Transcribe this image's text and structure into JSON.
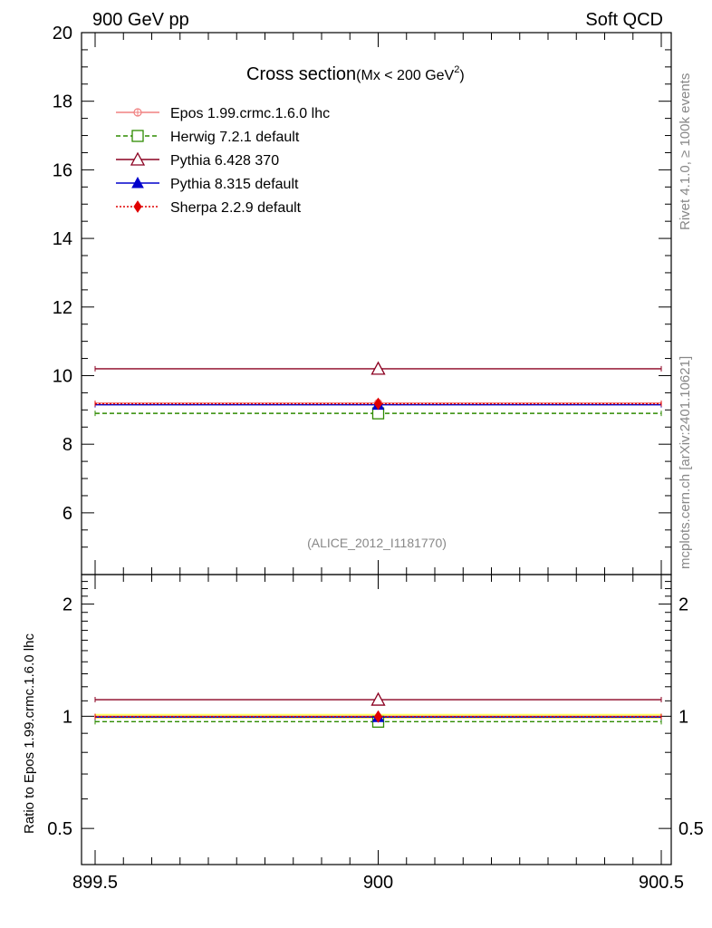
{
  "header": {
    "left": "900 GeV pp",
    "right": "Soft QCD"
  },
  "side": {
    "rivet": "Rivet 4.1.0, ≥ 100k events",
    "mcplots": "mcplots.cern.ch [arXiv:2401.10621]"
  },
  "colors": {
    "epos": "#f08080",
    "herwig": "#2e8b00",
    "pythia6": "#8b0020",
    "pythia8": "#0000cc",
    "sherpa": "#e00000",
    "band": "#ffff66"
  },
  "chart_data": [
    {
      "type": "line",
      "title": "Cross section",
      "title_suffix": "(Mx < 200 GeV",
      "title_suffix_sup": "2",
      "title_suffix_close": ")",
      "watermark": "(ALICE_2012_I1181770)",
      "xlim": [
        899.5,
        900.5
      ],
      "ylim": [
        4.2,
        20
      ],
      "xticks": [
        899.5,
        900,
        900.5
      ],
      "xtick_labels": [
        "899.5",
        "900",
        "900.5"
      ],
      "yticks": [
        6,
        8,
        10,
        12,
        14,
        16,
        18,
        20
      ],
      "ytick_labels": [
        "6",
        "8",
        "10",
        "12",
        "14",
        "16",
        "18",
        "20"
      ],
      "legend_position": "top-left",
      "series": [
        {
          "name": "Epos 1.99.crmc.1.6.0 lhc",
          "key": "epos",
          "marker": "open-cross",
          "dash": "solid",
          "x": 900,
          "xerr": [
            899.5,
            900.5
          ],
          "y": 9.2
        },
        {
          "name": "Herwig 7.2.1 default",
          "key": "herwig",
          "marker": "open-square",
          "dash": "dashed",
          "x": 900,
          "xerr": [
            899.5,
            900.5
          ],
          "y": 8.9
        },
        {
          "name": "Pythia 6.428 370",
          "key": "pythia6",
          "marker": "open-triangle",
          "dash": "solid",
          "x": 900,
          "xerr": [
            899.5,
            900.5
          ],
          "y": 10.2
        },
        {
          "name": "Pythia 8.315 default",
          "key": "pythia8",
          "marker": "filled-triangle",
          "dash": "solid",
          "x": 900,
          "xerr": [
            899.5,
            900.5
          ],
          "y": 9.15
        },
        {
          "name": "Sherpa 2.2.9 default",
          "key": "sherpa",
          "marker": "filled-diamond",
          "dash": "dotted",
          "x": 900,
          "xerr": [
            899.5,
            900.5
          ],
          "y": 9.18
        }
      ]
    },
    {
      "type": "line",
      "ylabel": "Ratio to Epos 1.99.crmc.1.6.0 lhc",
      "yscale": "log",
      "xlim": [
        899.5,
        900.5
      ],
      "ylim": [
        0.4,
        2.4
      ],
      "yticks": [
        0.5,
        1,
        2
      ],
      "ytick_labels": [
        "0.5",
        "1",
        "2"
      ],
      "series": [
        {
          "name": "Epos 1.99.crmc.1.6.0 lhc",
          "key": "epos",
          "marker": "none",
          "dash": "solid",
          "x": 900,
          "y": 1.0,
          "band": [
            0.985,
            1.015
          ]
        },
        {
          "name": "Herwig 7.2.1 default",
          "key": "herwig",
          "marker": "open-square",
          "dash": "dashed",
          "x": 900,
          "y": 0.967
        },
        {
          "name": "Pythia 6.428 370",
          "key": "pythia6",
          "marker": "open-triangle",
          "dash": "solid",
          "x": 900,
          "y": 1.108
        },
        {
          "name": "Pythia 8.315 default",
          "key": "pythia8",
          "marker": "filled-triangle",
          "dash": "solid",
          "x": 900,
          "y": 0.995
        },
        {
          "name": "Sherpa 2.2.9 default",
          "key": "sherpa",
          "marker": "filled-diamond",
          "dash": "dotted",
          "x": 900,
          "y": 0.998
        }
      ]
    }
  ]
}
